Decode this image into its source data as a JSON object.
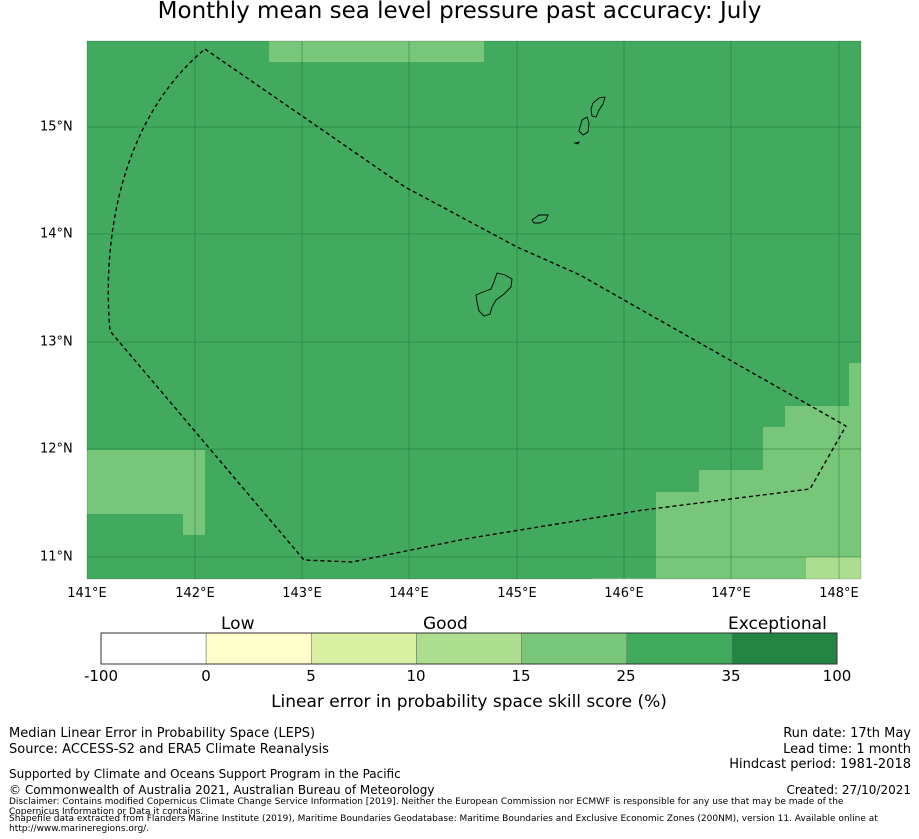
{
  "title": "Monthly mean sea level pressure past accuracy: July",
  "map": {
    "x_ticks": [
      "141°E",
      "142°E",
      "143°E",
      "144°E",
      "145°E",
      "146°E",
      "147°E",
      "148°E"
    ],
    "y_ticks": [
      "15°N",
      "14°N",
      "13°N",
      "12°N",
      "11°N"
    ],
    "colors": {
      "background_class": "#41aa5e",
      "class_15_25": "#78c679",
      "class_10_15": "#addd8e"
    }
  },
  "legend": {
    "categories": [
      "Low",
      "Good",
      "Exceptional"
    ],
    "labels": [
      "-100",
      "0",
      "5",
      "10",
      "15",
      "25",
      "35",
      "100"
    ],
    "colors": [
      "#ffffff",
      "#ffffcc",
      "#d9f0a3",
      "#addd8e",
      "#78c679",
      "#41ab5d",
      "#238443"
    ],
    "title": "Linear error in probability space skill score (%)"
  },
  "footer": {
    "left1": "Median Linear Error in Probability Space (LEPS)",
    "left2": "Source: ACCESS-S2 and ERA5 Climate Reanalysis",
    "left3": "Supported by Climate and Oceans Support Program in the Pacific",
    "left4": "© Commonwealth of Australia 2021, Australian Bureau of Meteorology",
    "right1": "Run date: 17th May",
    "right2": "Lead time: 1 month",
    "right3": "Hindcast period: 1981-2018",
    "created": "Created: 27/10/2021",
    "disclaimer": "Disclaimer: Contains modified Copernicus Climate Change Service Information [2019]. Neither the European Commission nor ECMWF is responsible for any use that may be made of the Copernicus Information or Data it contains.",
    "shapefile1": "Shapefile data extracted from Flanders Marine Institute (2019), Maritime Boundaries Geodatabase: Maritime Boundaries and Exclusive Economic Zones (200NM), version 11. Available online at",
    "shapefile2": "http://www.marineregions.org/."
  }
}
